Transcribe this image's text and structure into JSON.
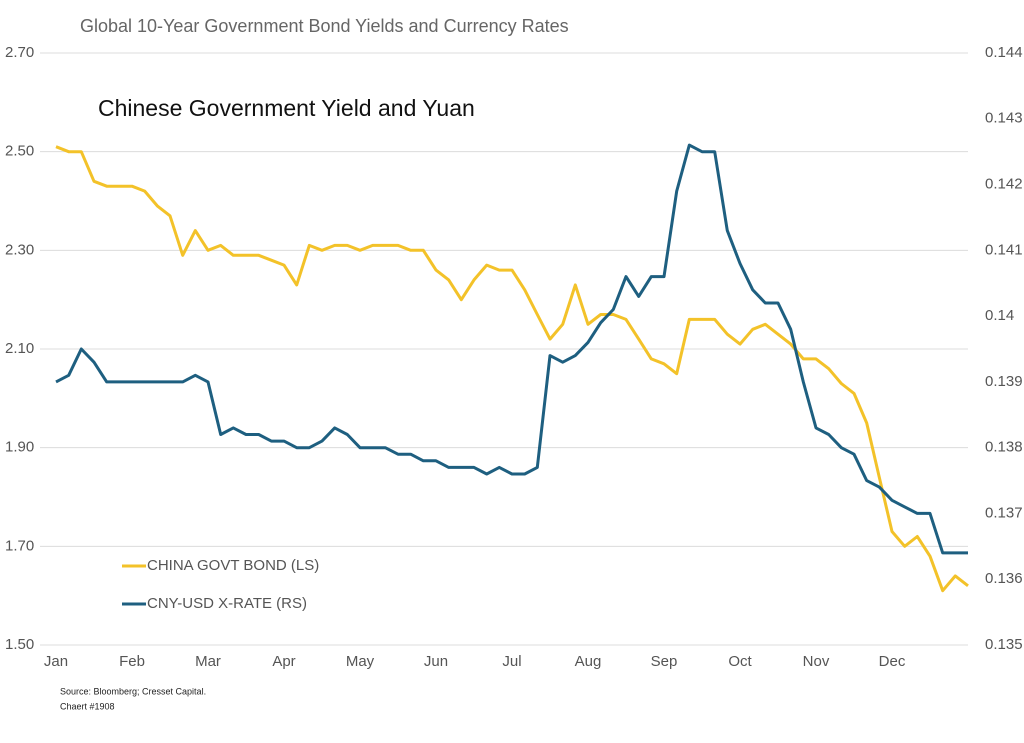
{
  "chart_data": {
    "type": "line",
    "title": "Global 10-Year Government Bond Yields and Currency Rates",
    "subtitle": "Chinese Government Yield and Yuan",
    "source": [
      "Source: Bloomberg; Cresset Capital.",
      "Chaert #1908"
    ],
    "categories": [
      "Jan",
      null,
      null,
      null,
      null,
      null,
      "Feb",
      null,
      null,
      null,
      null,
      null,
      "Mar",
      null,
      null,
      null,
      null,
      null,
      "Apr",
      null,
      null,
      null,
      null,
      null,
      "May",
      null,
      null,
      null,
      null,
      null,
      "Jun",
      null,
      null,
      null,
      null,
      null,
      "Jul",
      null,
      null,
      null,
      null,
      null,
      "Aug",
      null,
      null,
      null,
      null,
      null,
      "Sep",
      null,
      null,
      null,
      null,
      null,
      "Oct",
      null,
      null,
      null,
      null,
      null,
      "Nov",
      null,
      null,
      null,
      null,
      null,
      "Dec",
      null,
      null,
      null,
      null,
      null,
      null
    ],
    "series": [
      {
        "name": "CHINA GOVT BOND (LS)",
        "color": "#f3c229",
        "axis": "y",
        "values": [
          2.51,
          2.5,
          2.5,
          2.44,
          2.43,
          2.43,
          2.43,
          2.42,
          2.39,
          2.37,
          2.29,
          2.34,
          2.3,
          2.31,
          2.29,
          2.29,
          2.29,
          2.28,
          2.27,
          2.23,
          2.31,
          2.3,
          2.31,
          2.31,
          2.3,
          2.31,
          2.31,
          2.31,
          2.3,
          2.3,
          2.26,
          2.24,
          2.2,
          2.24,
          2.27,
          2.26,
          2.26,
          2.22,
          2.17,
          2.12,
          2.15,
          2.23,
          2.15,
          2.17,
          2.17,
          2.16,
          2.12,
          2.08,
          2.07,
          2.05,
          2.16,
          2.16,
          2.16,
          2.13,
          2.11,
          2.14,
          2.15,
          2.13,
          2.11,
          2.08,
          2.08,
          2.06,
          2.03,
          2.01,
          1.95,
          1.84,
          1.73,
          1.7,
          1.72,
          1.68,
          1.61,
          1.64,
          1.62
        ]
      },
      {
        "name": "CNY-USD X-RATE (RS)",
        "color": "#1e5f80",
        "axis": "y2",
        "values": [
          0.139,
          0.1391,
          0.1395,
          0.1393,
          0.139,
          0.139,
          0.139,
          0.139,
          0.139,
          0.139,
          0.139,
          0.1391,
          0.139,
          0.1382,
          0.1383,
          0.1382,
          0.1382,
          0.1381,
          0.1381,
          0.138,
          0.138,
          0.1381,
          0.1383,
          0.1382,
          0.138,
          0.138,
          0.138,
          0.1379,
          0.1379,
          0.1378,
          0.1378,
          0.1377,
          0.1377,
          0.1377,
          0.1376,
          0.1377,
          0.1376,
          0.1376,
          0.1377,
          0.1394,
          0.1393,
          0.1394,
          0.1396,
          0.1399,
          0.1401,
          0.1406,
          0.1403,
          0.1406,
          0.1406,
          0.1419,
          0.1426,
          0.1425,
          0.1425,
          0.1413,
          0.1408,
          0.1404,
          0.1402,
          0.1402,
          0.1398,
          0.139,
          0.1383,
          0.1382,
          0.138,
          0.1379,
          0.1375,
          0.1374,
          0.1372,
          0.1371,
          0.137,
          0.137,
          0.1364,
          0.1364,
          0.1364
        ]
      }
    ],
    "ylim": [
      1.5,
      2.7
    ],
    "yticks": [
      {
        "value": 1.5,
        "label": "1.50"
      },
      {
        "value": 1.7,
        "label": "1.70"
      },
      {
        "value": 1.9,
        "label": "1.90"
      },
      {
        "value": 2.1,
        "label": "2.10"
      },
      {
        "value": 2.3,
        "label": "2.30"
      },
      {
        "value": 2.5,
        "label": "2.50"
      },
      {
        "value": 2.7,
        "label": "2.70"
      }
    ],
    "y2lim": [
      0.135,
      0.144
    ],
    "y2ticks": [
      0.135,
      0.136,
      0.137,
      0.138,
      0.139,
      0.14,
      0.141,
      0.142,
      0.143,
      0.144
    ],
    "grid": true,
    "legend": "lower left"
  }
}
